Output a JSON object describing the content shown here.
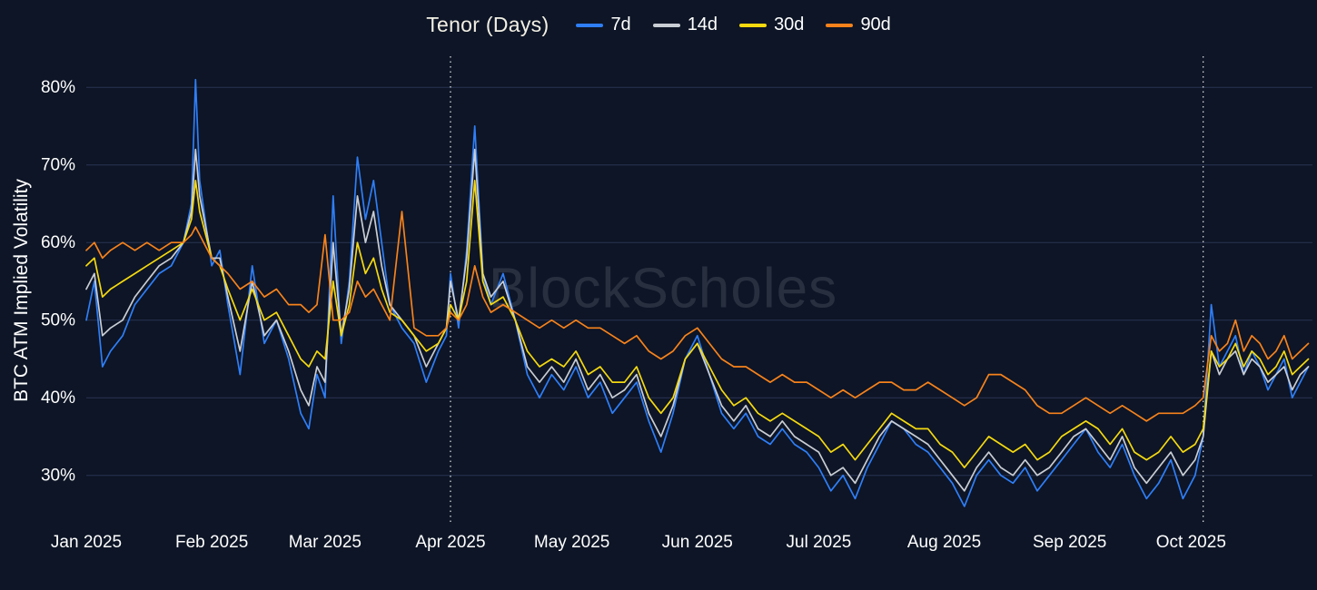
{
  "chart_data": {
    "type": "line",
    "title": "Tenor (Days)",
    "ylabel": "BTC ATM Implied Volatility",
    "xlabel": "",
    "watermark": "BlockScholes",
    "legend_position": "top",
    "grid": "horizontal",
    "ylim": [
      24,
      84
    ],
    "xlim": [
      0,
      303
    ],
    "colors": {
      "background": "#0d1526",
      "grid": "#293452",
      "text": "#ffffff",
      "title": "#f2efe4",
      "event_line": "#ffffff"
    },
    "y_ticks": [
      {
        "value": 30,
        "label": "30%"
      },
      {
        "value": 40,
        "label": "40%"
      },
      {
        "value": 50,
        "label": "50%"
      },
      {
        "value": 60,
        "label": "60%"
      },
      {
        "value": 70,
        "label": "70%"
      },
      {
        "value": 80,
        "label": "80%"
      }
    ],
    "x_ticks": [
      {
        "value": 0,
        "label": "Jan 2025"
      },
      {
        "value": 31,
        "label": "Feb 2025"
      },
      {
        "value": 59,
        "label": "Mar 2025"
      },
      {
        "value": 90,
        "label": "Apr 2025"
      },
      {
        "value": 120,
        "label": "May 2025"
      },
      {
        "value": 151,
        "label": "Jun 2025"
      },
      {
        "value": 181,
        "label": "Jul 2025"
      },
      {
        "value": 212,
        "label": "Aug 2025"
      },
      {
        "value": 243,
        "label": "Sep 2025"
      },
      {
        "value": 273,
        "label": "Oct 2025"
      }
    ],
    "vlines": [
      90,
      276
    ],
    "x": [
      0,
      2,
      4,
      6,
      9,
      12,
      15,
      18,
      21,
      24,
      26,
      27,
      28,
      31,
      33,
      35,
      38,
      41,
      44,
      47,
      50,
      53,
      55,
      57,
      59,
      61,
      63,
      65,
      67,
      69,
      71,
      73,
      75,
      78,
      81,
      84,
      87,
      89,
      90,
      92,
      94,
      96,
      98,
      100,
      103,
      106,
      109,
      112,
      115,
      118,
      121,
      124,
      127,
      130,
      133,
      136,
      139,
      142,
      145,
      148,
      151,
      154,
      157,
      160,
      163,
      166,
      169,
      172,
      175,
      178,
      181,
      184,
      187,
      190,
      193,
      196,
      199,
      202,
      205,
      208,
      211,
      214,
      217,
      220,
      223,
      226,
      229,
      232,
      235,
      238,
      241,
      244,
      247,
      250,
      253,
      256,
      259,
      262,
      265,
      268,
      271,
      274,
      276,
      278,
      280,
      282,
      284,
      286,
      288,
      290,
      292,
      294,
      296,
      298,
      300,
      302
    ],
    "series": [
      {
        "name": "7d",
        "color": "#2f7ef7",
        "values": [
          50,
          55,
          44,
          46,
          48,
          52,
          54,
          56,
          57,
          60,
          65,
          81,
          68,
          57,
          59,
          52,
          43,
          57,
          47,
          50,
          45,
          38,
          36,
          43,
          40,
          66,
          47,
          55,
          71,
          63,
          68,
          60,
          52,
          49,
          47,
          42,
          46,
          48,
          56,
          49,
          59,
          75,
          56,
          52,
          56,
          50,
          43,
          40,
          43,
          41,
          44,
          40,
          42,
          38,
          40,
          42,
          37,
          33,
          38,
          45,
          48,
          43,
          38,
          36,
          38,
          35,
          34,
          36,
          34,
          33,
          31,
          28,
          30,
          27,
          31,
          34,
          37,
          36,
          34,
          33,
          31,
          29,
          26,
          30,
          32,
          30,
          29,
          31,
          28,
          30,
          32,
          34,
          36,
          33,
          31,
          34,
          30,
          27,
          29,
          32,
          27,
          30,
          35,
          52,
          44,
          46,
          48,
          43,
          46,
          44,
          41,
          43,
          45,
          40,
          42,
          44
        ]
      },
      {
        "name": "14d",
        "color": "#c9cdd4",
        "values": [
          54,
          56,
          48,
          49,
          50,
          53,
          55,
          57,
          58,
          60,
          64,
          72,
          66,
          58,
          58,
          53,
          46,
          55,
          48,
          50,
          46,
          41,
          39,
          44,
          42,
          60,
          48,
          54,
          66,
          60,
          64,
          57,
          52,
          50,
          48,
          44,
          47,
          49,
          55,
          50,
          58,
          72,
          56,
          53,
          55,
          50,
          44,
          42,
          44,
          42,
          45,
          41,
          43,
          40,
          41,
          43,
          38,
          35,
          39,
          45,
          47,
          43,
          39,
          37,
          39,
          36,
          35,
          37,
          35,
          34,
          33,
          30,
          31,
          29,
          32,
          35,
          37,
          36,
          35,
          34,
          32,
          30,
          28,
          31,
          33,
          31,
          30,
          32,
          30,
          31,
          33,
          35,
          36,
          34,
          32,
          35,
          31,
          29,
          31,
          33,
          30,
          32,
          35,
          46,
          43,
          45,
          46,
          43,
          45,
          44,
          42,
          43,
          44,
          41,
          43,
          44
        ]
      },
      {
        "name": "30d",
        "color": "#f5d90f",
        "values": [
          57,
          58,
          53,
          54,
          55,
          56,
          57,
          58,
          59,
          60,
          63,
          68,
          64,
          58,
          57,
          54,
          50,
          54,
          50,
          51,
          48,
          45,
          44,
          46,
          45,
          55,
          48,
          52,
          60,
          56,
          58,
          54,
          51,
          50,
          48,
          46,
          47,
          49,
          52,
          50,
          55,
          68,
          55,
          52,
          53,
          50,
          46,
          44,
          45,
          44,
          46,
          43,
          44,
          42,
          42,
          44,
          40,
          38,
          40,
          45,
          47,
          44,
          41,
          39,
          40,
          38,
          37,
          38,
          37,
          36,
          35,
          33,
          34,
          32,
          34,
          36,
          38,
          37,
          36,
          36,
          34,
          33,
          31,
          33,
          35,
          34,
          33,
          34,
          32,
          33,
          35,
          36,
          37,
          36,
          34,
          36,
          33,
          32,
          33,
          35,
          33,
          34,
          36,
          46,
          44,
          45,
          47,
          44,
          46,
          45,
          43,
          44,
          46,
          43,
          44,
          45
        ]
      },
      {
        "name": "90d",
        "color": "#f7821b",
        "values": [
          59,
          60,
          58,
          59,
          60,
          59,
          60,
          59,
          60,
          60,
          61,
          62,
          61,
          58,
          57,
          56,
          54,
          55,
          53,
          54,
          52,
          52,
          51,
          52,
          61,
          50,
          50,
          51,
          55,
          53,
          54,
          52,
          50,
          64,
          49,
          48,
          48,
          49,
          51,
          50,
          52,
          57,
          53,
          51,
          52,
          51,
          50,
          49,
          50,
          49,
          50,
          49,
          49,
          48,
          47,
          48,
          46,
          45,
          46,
          48,
          49,
          47,
          45,
          44,
          44,
          43,
          42,
          43,
          42,
          42,
          41,
          40,
          41,
          40,
          41,
          42,
          42,
          41,
          41,
          42,
          41,
          40,
          39,
          40,
          43,
          43,
          42,
          41,
          39,
          38,
          38,
          39,
          40,
          39,
          38,
          39,
          38,
          37,
          38,
          38,
          38,
          39,
          40,
          48,
          46,
          47,
          50,
          46,
          48,
          47,
          45,
          46,
          48,
          45,
          46,
          47
        ]
      }
    ]
  }
}
